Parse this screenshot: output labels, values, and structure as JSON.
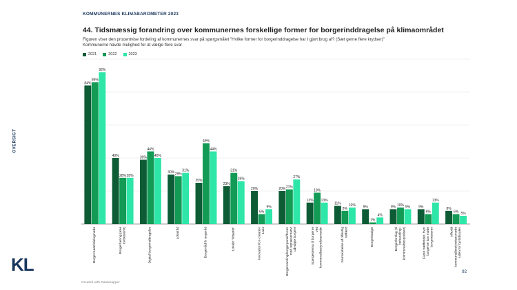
{
  "header": {
    "kicker": "KOMMUNERNES KLIMABAROMETER 2023",
    "title": "44. Tidsmæssig forandring over kommunernes forskellige former for borgerinddragelse på klimaområdet",
    "subtitle_line1": "Figuren viser den procentvise fordeling af kommunernes svar på spørgsmålet \"Hvilke former for borgerinddragelse har I gjort brug af? (Sæt gerne flere krydser)\"",
    "subtitle_line2": "Kommunerne havde mulighed for at vælge flere svar"
  },
  "side_label": "OVERSIGT",
  "logo_text": "KL",
  "page_number": "92",
  "credit": "Created with Datawrapper",
  "colors": {
    "2021": "#0d5c36",
    "2022": "#139a55",
    "2023": "#2ee6a8"
  },
  "chart_data": {
    "type": "bar",
    "title": "44. Tidsmæssig forandring over kommunernes forskellige former for borgerinddragelse på klimaområdet",
    "xlabel": "",
    "ylabel": "",
    "ylim": [
      0,
      100
    ],
    "grid": true,
    "legend_position": "top-left",
    "categories": [
      "Borgermøde/dialogmøde",
      "Borgerhøring (ikke lovbestemt)",
      "Digital borgerinddragelse",
      "Lokalråd",
      "Borgerråd fx ungeråd",
      "Lokale \"ildsjæle\"",
      "Innovation/Co-creation Labs",
      "Borgersamling/borgerpanel/forum med repræsentativt udvalgte borgere",
      "Spørgeskema til borgerne ved kommunalbestyrelsesmøder",
      "Samskabelse af offentlig velfærd",
      "Borgerbudget",
      "Borgerforslag (til behandling i kommunalbestyrelsen)",
      "Faste træffetider, hvor borgerne kan møde borgmesteren",
      "Afholdt kommunalbestyrelsesmøde uden for byrådssalen"
    ],
    "series": [
      {
        "name": "2021",
        "values": [
          84,
          40,
          39,
          30,
          25,
          23,
          20,
          20,
          13,
          11,
          9,
          9,
          9,
          8
        ]
      },
      {
        "name": "2022",
        "values": [
          86,
          28,
          44,
          29,
          49,
          31,
          6,
          21,
          19,
          8,
          1,
          10,
          6,
          6
        ]
      },
      {
        "name": "2023",
        "values": [
          92,
          28,
          40,
          31,
          44,
          26,
          9,
          27,
          13,
          10,
          4,
          9,
          13,
          5
        ]
      }
    ]
  }
}
